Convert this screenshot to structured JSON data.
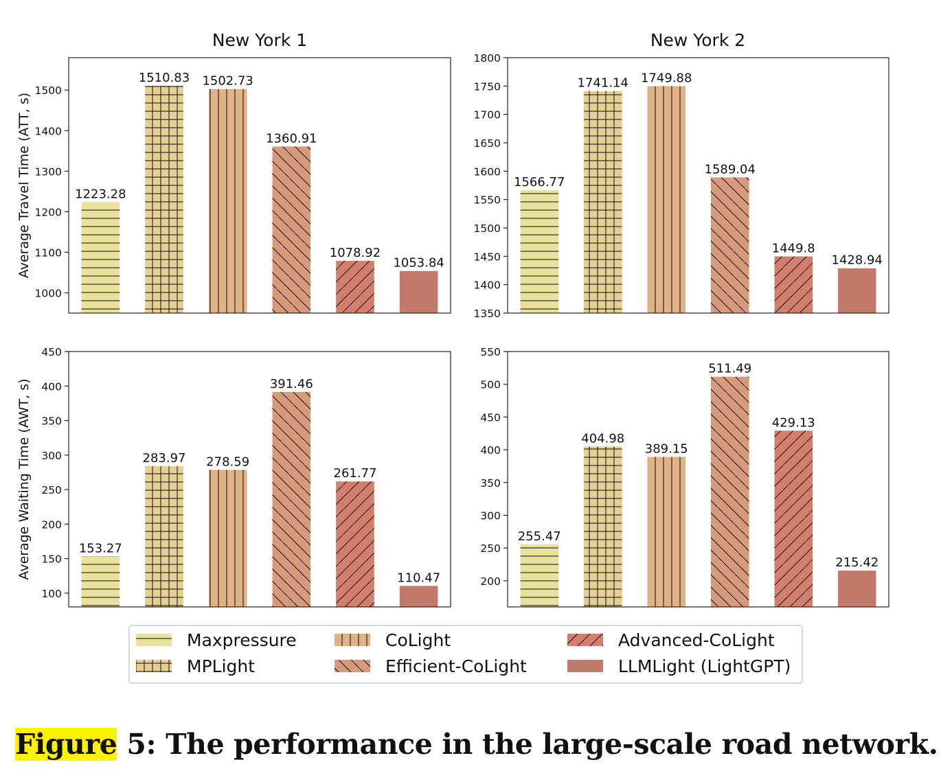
{
  "chart_data": [
    {
      "type": "bar",
      "title": "New York 1",
      "xlabel": "",
      "ylabel": "Average Travel Time (ATT, s)",
      "categories": [
        "Maxpressure",
        "MPLight",
        "CoLight",
        "Efficient-CoLight",
        "Advanced-CoLight",
        "LLMLight (LightGPT)"
      ],
      "values": [
        1223.28,
        1510.83,
        1502.73,
        1360.91,
        1078.92,
        1053.84
      ],
      "value_labels": [
        "1223.28",
        "1510.83",
        "1502.73",
        "1360.91",
        "1078.92",
        "1053.84"
      ],
      "ylim": [
        950,
        1580
      ],
      "yticks": [
        1000,
        1100,
        1200,
        1300,
        1400,
        1500
      ],
      "ytick_labels": [
        "1000",
        "1100",
        "1200",
        "1300",
        "1400",
        "1500"
      ]
    },
    {
      "type": "bar",
      "title": "New York 2",
      "xlabel": "",
      "ylabel": "",
      "categories": [
        "Maxpressure",
        "MPLight",
        "CoLight",
        "Efficient-CoLight",
        "Advanced-CoLight",
        "LLMLight (LightGPT)"
      ],
      "values": [
        1566.77,
        1741.14,
        1749.88,
        1589.04,
        1449.8,
        1428.94
      ],
      "value_labels": [
        "1566.77",
        "1741.14",
        "1749.88",
        "1589.04",
        "1449.8",
        "1428.94"
      ],
      "ylim": [
        1350,
        1800
      ],
      "yticks": [
        1350,
        1400,
        1450,
        1500,
        1550,
        1600,
        1650,
        1700,
        1750,
        1800
      ],
      "ytick_labels": [
        "1350",
        "1400",
        "1450",
        "1500",
        "1550",
        "1600",
        "1650",
        "1700",
        "1750",
        "1800"
      ]
    },
    {
      "type": "bar",
      "title": "",
      "xlabel": "",
      "ylabel": "Average Waiting Time (AWT, s)",
      "categories": [
        "Maxpressure",
        "MPLight",
        "CoLight",
        "Efficient-CoLight",
        "Advanced-CoLight",
        "LLMLight (LightGPT)"
      ],
      "values": [
        153.27,
        283.97,
        278.59,
        391.46,
        261.77,
        110.47
      ],
      "value_labels": [
        "153.27",
        "283.97",
        "278.59",
        "391.46",
        "261.77",
        "110.47"
      ],
      "ylim": [
        80,
        450
      ],
      "yticks": [
        100,
        150,
        200,
        250,
        300,
        350,
        400,
        450
      ],
      "ytick_labels": [
        "100",
        "150",
        "200",
        "250",
        "300",
        "350",
        "400",
        "450"
      ]
    },
    {
      "type": "bar",
      "title": "",
      "xlabel": "",
      "ylabel": "",
      "categories": [
        "Maxpressure",
        "MPLight",
        "CoLight",
        "Efficient-CoLight",
        "Advanced-CoLight",
        "LLMLight (LightGPT)"
      ],
      "values": [
        255.47,
        404.98,
        389.15,
        511.49,
        429.13,
        215.42
      ],
      "value_labels": [
        "255.47",
        "404.98",
        "389.15",
        "511.49",
        "429.13",
        "215.42"
      ],
      "ylim": [
        160,
        550
      ],
      "yticks": [
        200,
        250,
        300,
        350,
        400,
        450,
        500,
        550
      ],
      "ytick_labels": [
        "200",
        "250",
        "300",
        "350",
        "400",
        "450",
        "500",
        "550"
      ]
    }
  ],
  "legend": {
    "placement": "bottom-center",
    "items": [
      {
        "label": "Maxpressure",
        "color": "#e8e29c",
        "pattern": "horizontal"
      },
      {
        "label": "MPLight",
        "color": "#e6cf92",
        "pattern": "grid"
      },
      {
        "label": "CoLight",
        "color": "#dfb385",
        "pattern": "vertical"
      },
      {
        "label": "Efficient-CoLight",
        "color": "#d99a7b",
        "pattern": "backslash"
      },
      {
        "label": "Advanced-CoLight",
        "color": "#d47f6b",
        "pattern": "slash"
      },
      {
        "label": "LLMLight (LightGPT)",
        "color": "#c17a6c",
        "pattern": "none"
      }
    ]
  },
  "caption": {
    "highlight": "Figure",
    "text": " 5: The performance in the large-scale road network."
  }
}
